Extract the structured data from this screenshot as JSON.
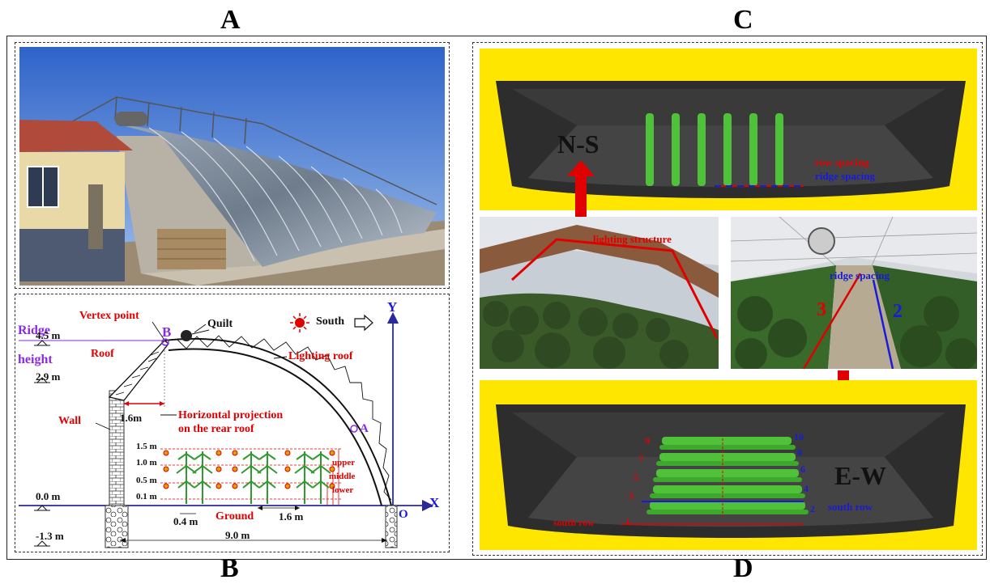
{
  "panels": {
    "a": "A",
    "b": "B",
    "c": "C",
    "d": "D"
  },
  "schematic": {
    "ridge_word": "Ridge",
    "height_word": "height",
    "vertex_point": "Vertex point",
    "point_b": "B",
    "point_a": "A",
    "point_o": "O",
    "quilt": "Quilt",
    "south": "South",
    "roof": "Roof",
    "lighting_roof": "Lighting roof",
    "wall": "Wall",
    "horizontal_projection_1": "Horizontal projection",
    "horizontal_projection_2": "on the rear roof",
    "ground": "Ground",
    "axis_x": "X",
    "axis_y": "Y",
    "level_4_5": "4.5 m",
    "level_2_9": "2.9 m",
    "level_0_0": "0.0 m",
    "level_neg_1_3": "-1.3 m",
    "dim_1_6_rear": "1.6m",
    "dim_0_4": "0.4 m",
    "dim_1_6_ridge": "1.6 m",
    "dim_9_0": "9.0 m",
    "h_1_5": "1.5 m",
    "h_1_0": "1.0 m",
    "h_0_5": "0.5 m",
    "h_0_1": "0.1 m",
    "upper": "upper",
    "middle": "middle",
    "lower": "lower"
  },
  "model_ns": {
    "orientation": "N-S",
    "row_spacing": "row spacing",
    "ridge_spacing": "ridge spacing"
  },
  "photo_left": {
    "label": "lighting structure"
  },
  "photo_right": {
    "label": "ridge spacing",
    "num_3": "3",
    "num_2": "2"
  },
  "model_ew": {
    "orientation": "E-W",
    "south_row_left": "south row",
    "south_row_right": "south row",
    "left_numbers": [
      "9",
      "7",
      "5",
      "3",
      "1"
    ],
    "right_numbers": [
      "10",
      "8",
      "6",
      "4",
      "2"
    ]
  },
  "colors": {
    "red": "#e00000",
    "blue": "#1a1adb",
    "yellow": "#ffe600",
    "purple": "#8a2be2",
    "navy": "#2a2a9a"
  }
}
